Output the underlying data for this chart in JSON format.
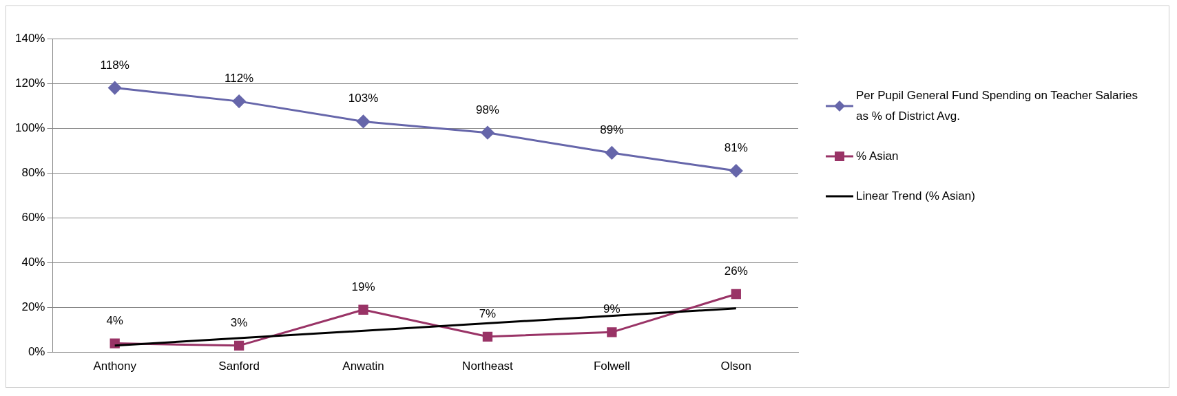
{
  "chart_data": {
    "type": "line",
    "categories": [
      "Anthony",
      "Sanford",
      "Anwatin",
      "Northeast",
      "Folwell",
      "Olson"
    ],
    "series": [
      {
        "name": "Per Pupil General Fund Spending on Teacher Salaries as % of District Avg.",
        "color": "#6666aa",
        "marker": "diamond",
        "values": [
          118,
          112,
          103,
          98,
          89,
          81
        ],
        "value_labels": [
          "118%",
          "112%",
          "103%",
          "98%",
          "89%",
          "81%"
        ]
      },
      {
        "name": "% Asian",
        "color": "#993366",
        "marker": "square",
        "values": [
          4,
          3,
          19,
          7,
          9,
          26
        ],
        "value_labels": [
          "4%",
          "3%",
          "19%",
          "7%",
          "9%",
          "26%"
        ]
      },
      {
        "name": "Linear Trend (% Asian)",
        "color": "#000000",
        "marker": "none",
        "x": [
          "Anthony",
          "Olson"
        ],
        "values": [
          3,
          19.6
        ]
      }
    ],
    "ylim": [
      0,
      140
    ],
    "yticks": [
      {
        "value": 0,
        "label": "0%"
      },
      {
        "value": 20,
        "label": "20%"
      },
      {
        "value": 40,
        "label": "40%"
      },
      {
        "value": 60,
        "label": "60%"
      },
      {
        "value": 80,
        "label": "80%"
      },
      {
        "value": 100,
        "label": "100%"
      },
      {
        "value": 120,
        "label": "120%"
      },
      {
        "value": 140,
        "label": "140%"
      }
    ],
    "grid": "y",
    "legend": "right"
  }
}
